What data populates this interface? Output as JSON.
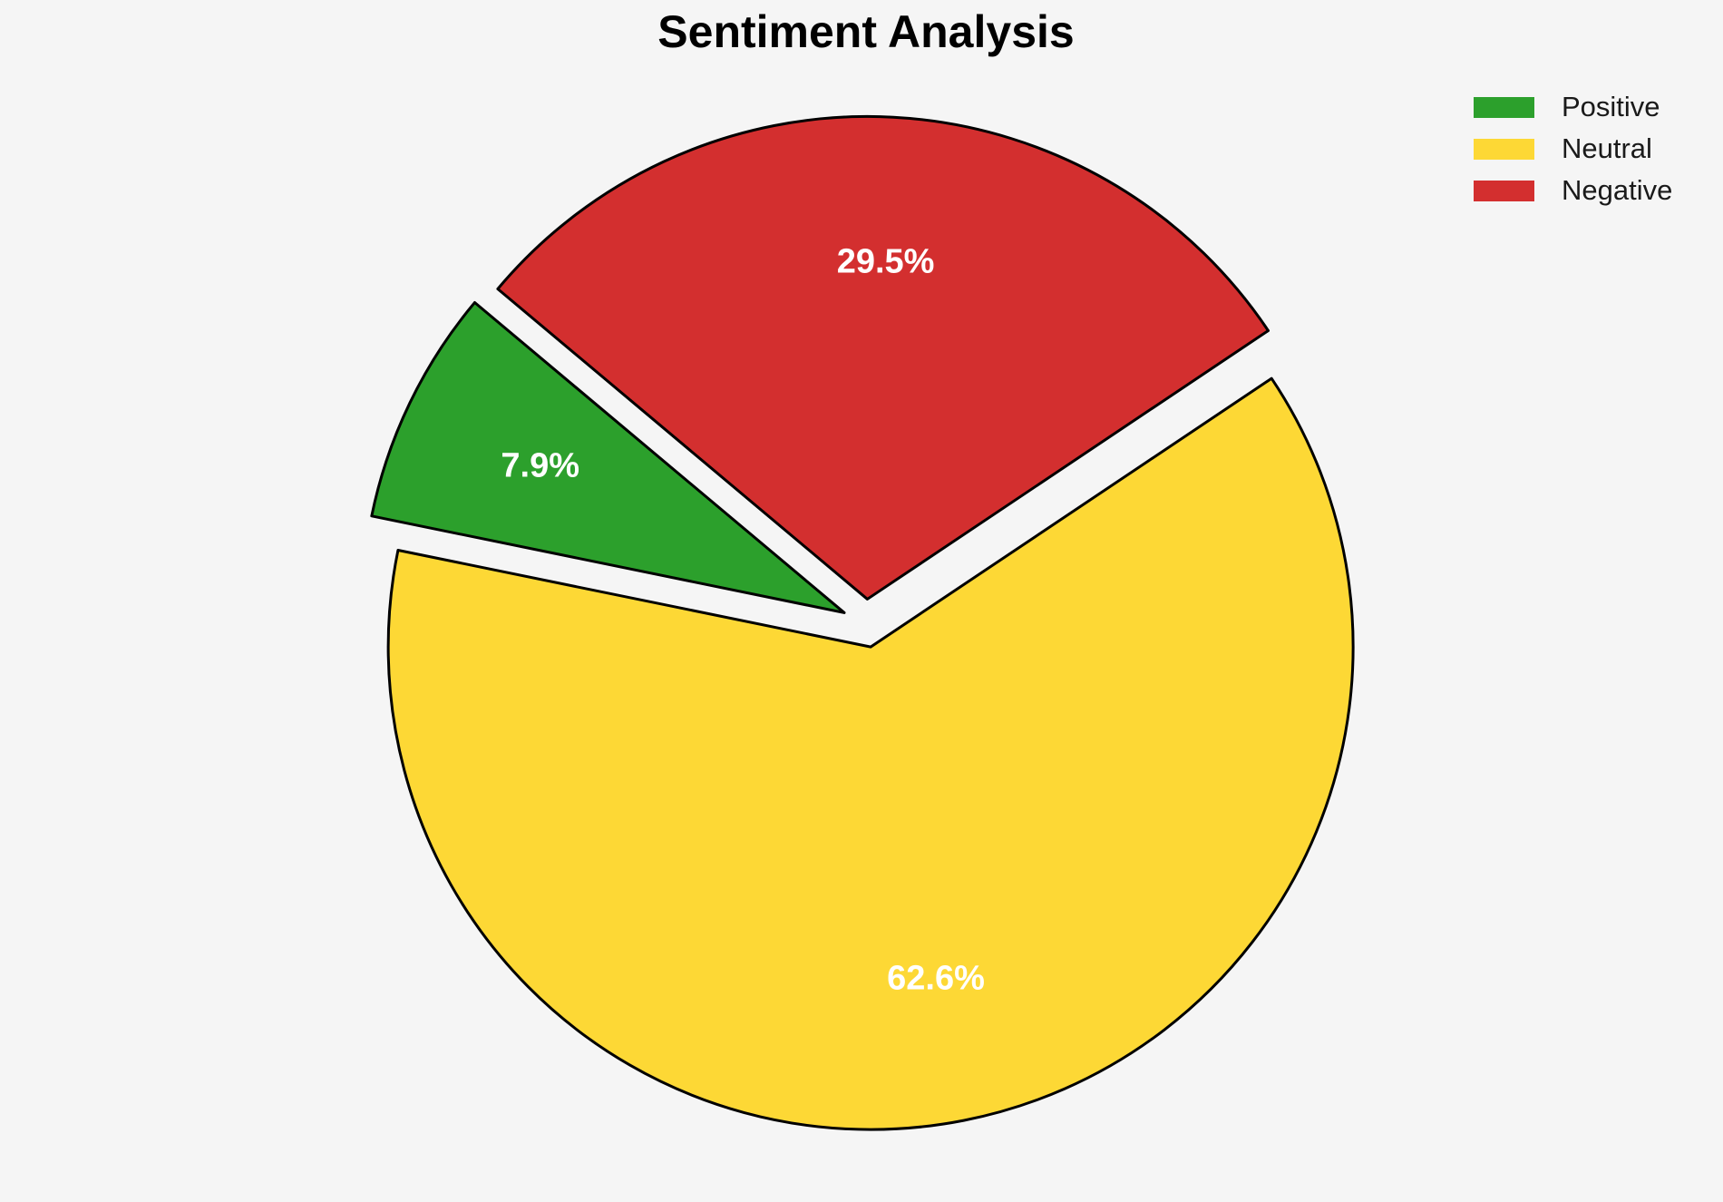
{
  "page": {
    "background": "#f5f5f5"
  },
  "chart_data": {
    "type": "pie",
    "title": "Sentiment Analysis",
    "categories": [
      "Positive",
      "Neutral",
      "Negative"
    ],
    "values": [
      7.9,
      62.6,
      29.5
    ],
    "value_labels": [
      "7.9%",
      "62.6%",
      "29.5%"
    ],
    "colors": [
      "#2ca02c",
      "#fdd835",
      "#d32f2f"
    ],
    "edge_color": "#000000",
    "pct_label_color": "#ffffff",
    "start_angle": 140,
    "counterclockwise": true,
    "explode": 0.05,
    "pct_distance": 0.7,
    "legend_position": "upper right",
    "legend_frame": false
  },
  "legend": {
    "items": [
      {
        "label": "Positive",
        "color": "#2ca02c"
      },
      {
        "label": "Neutral",
        "color": "#fdd835"
      },
      {
        "label": "Negative",
        "color": "#d32f2f"
      }
    ]
  }
}
